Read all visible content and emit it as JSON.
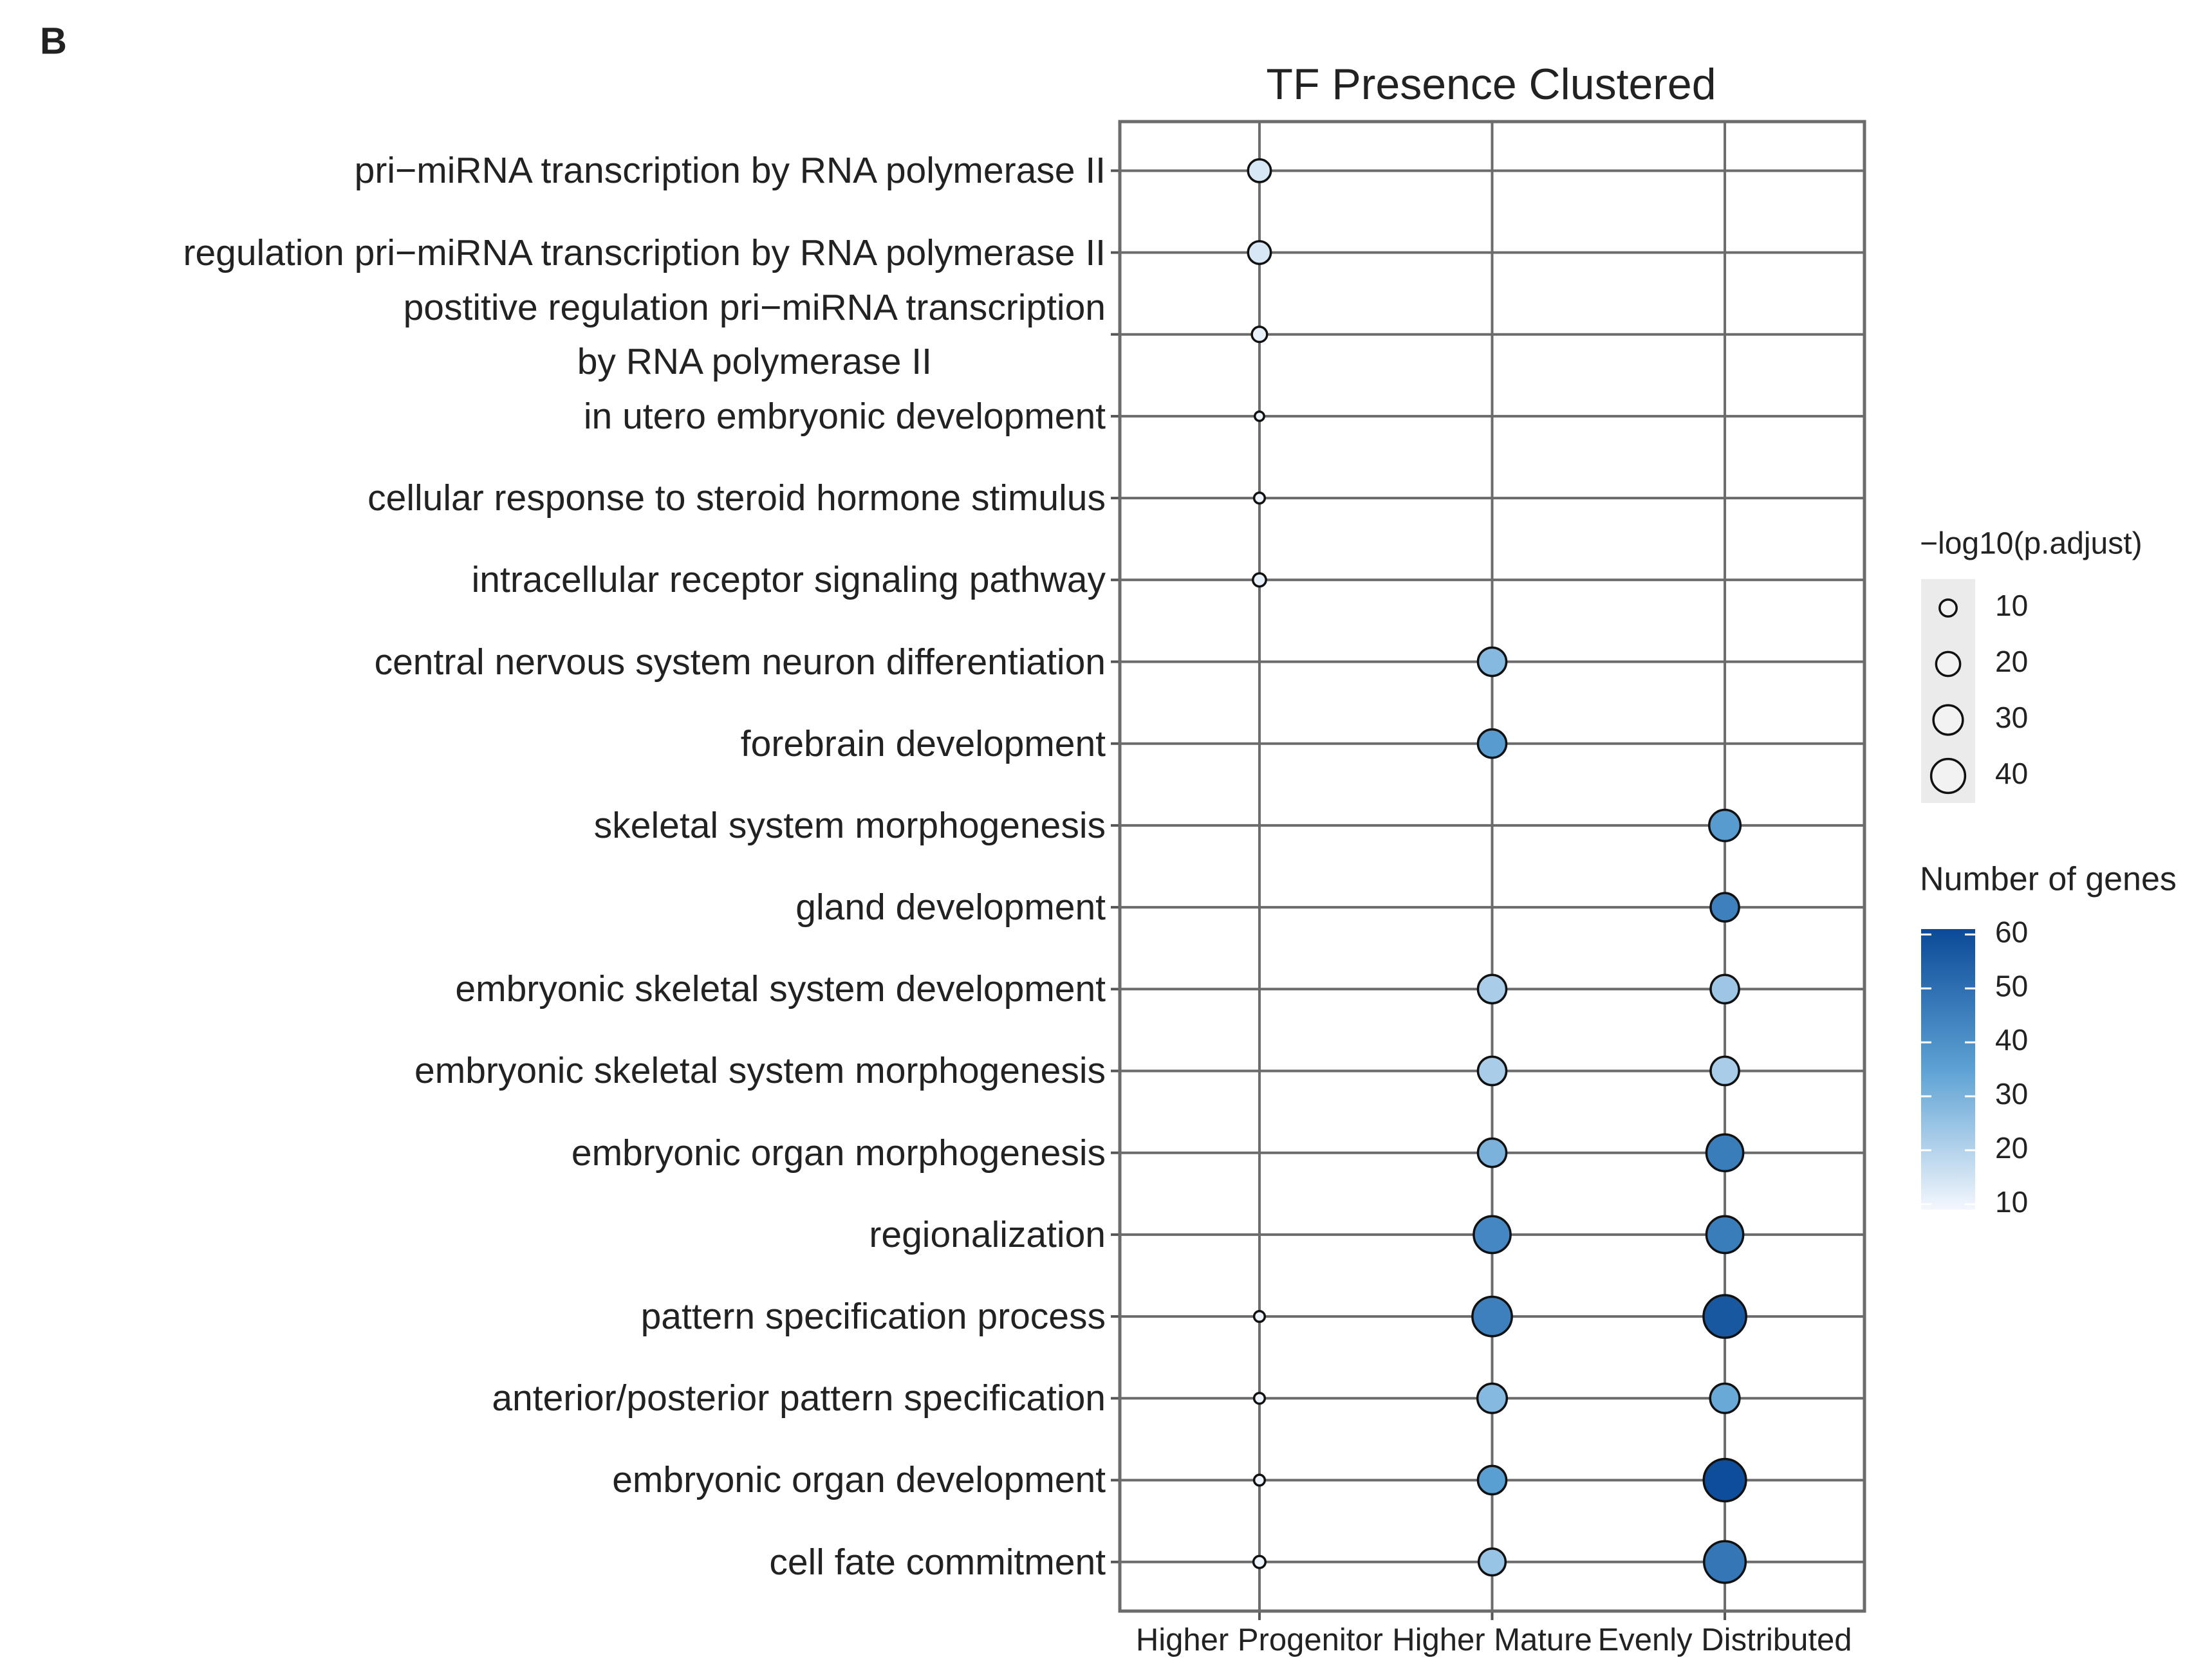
{
  "chart_data": {
    "type": "dot",
    "panel_label": "B",
    "title": "TF Presence Clustered",
    "categories": [
      "pri−miRNA transcription by RNA polymerase II",
      "regulation pri−miRNA transcription by RNA polymerase II",
      "postitive regulation pri−miRNA transcription\nby RNA polymerase II",
      "in utero embryonic development",
      "cellular response to steroid hormone stimulus",
      "intracellular receptor signaling pathway",
      "central nervous system neuron differentiation",
      "forebrain development",
      "skeletal system morphogenesis",
      "gland development",
      "embryonic skeletal system development",
      "embryonic skeletal system morphogenesis",
      "embryonic organ morphogenesis",
      "regionalization",
      "pattern specification process",
      "anterior/posterior pattern specification",
      "embryonic organ development",
      "cell fate commitment"
    ],
    "series": [
      {
        "name": "Higher Progenitor",
        "values": [
          18,
          18,
          8,
          3,
          4,
          6,
          null,
          null,
          null,
          null,
          null,
          null,
          null,
          null,
          4,
          4,
          4,
          5
        ],
        "counts": [
          14,
          14,
          11,
          10,
          10,
          11,
          null,
          null,
          null,
          null,
          null,
          null,
          null,
          null,
          10,
          10,
          10,
          10
        ]
      },
      {
        "name": "Higher Mature",
        "values": [
          null,
          null,
          null,
          null,
          null,
          null,
          28,
          28,
          null,
          null,
          28,
          28,
          28,
          47,
          54,
          30,
          28,
          25
        ],
        "counts": [
          null,
          null,
          null,
          null,
          null,
          null,
          28,
          37,
          null,
          null,
          22,
          22,
          30,
          43,
          45,
          28,
          36,
          25
        ]
      },
      {
        "name": "Evenly Distributed",
        "values": [
          null,
          null,
          null,
          null,
          null,
          null,
          null,
          null,
          34,
          28,
          28,
          28,
          47,
          47,
          63,
          30,
          62,
          60
        ],
        "counts": [
          null,
          null,
          null,
          null,
          null,
          null,
          null,
          null,
          37,
          45,
          24,
          22,
          46,
          46,
          57,
          33,
          60,
          48
        ]
      }
    ],
    "size_legend": {
      "title": "−log10(p.adjust)",
      "values": [
        10,
        20,
        30,
        40
      ]
    },
    "color_legend": {
      "title": "Number of genes",
      "ticks": [
        10,
        20,
        30,
        40,
        50,
        60
      ],
      "lim": [
        9,
        61
      ],
      "colors": [
        "#f4f7fd",
        "#5da2d4",
        "#0b4a98"
      ]
    }
  }
}
